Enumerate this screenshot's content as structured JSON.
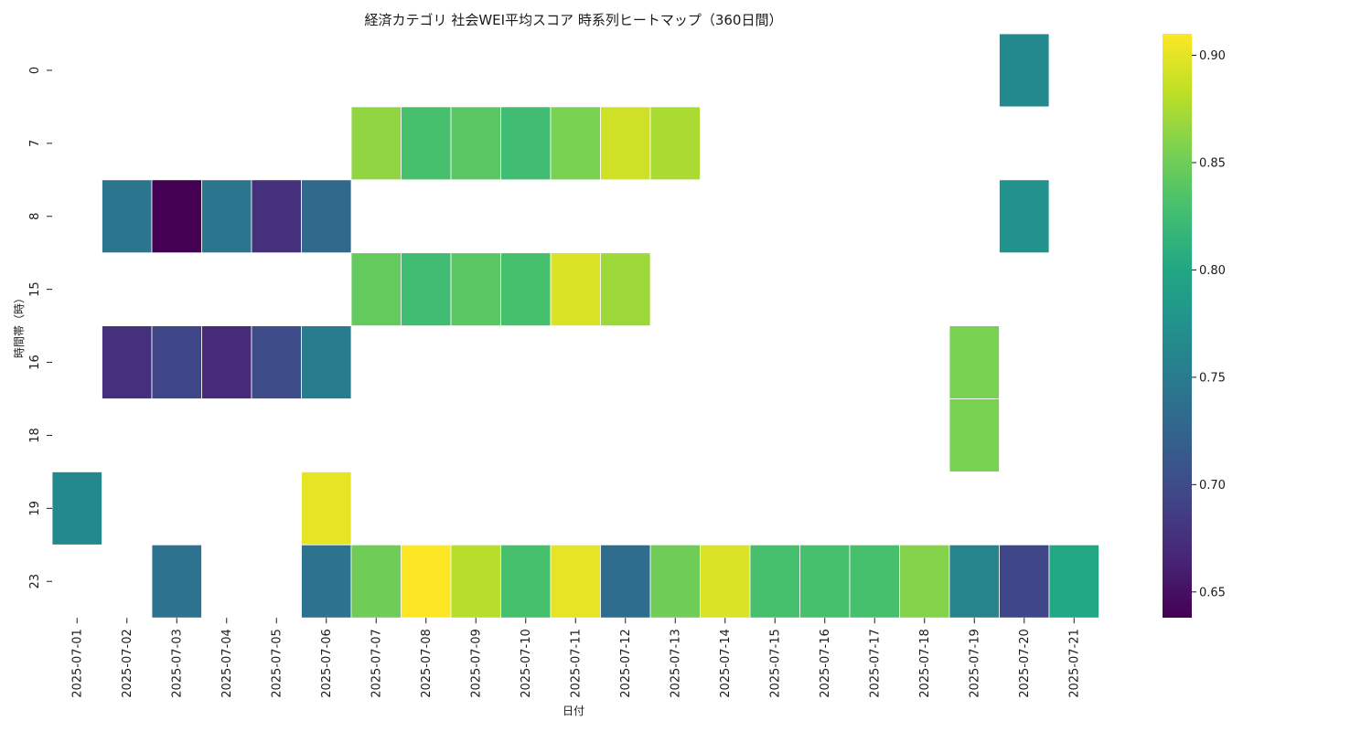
{
  "chart_data": {
    "type": "heatmap",
    "title": "経済カテゴリ 社会WEI平均スコア 時系列ヒートマップ（360日間）",
    "xlabel": "日付",
    "ylabel": "時間帯（時）",
    "x": [
      "2025-07-01",
      "2025-07-02",
      "2025-07-03",
      "2025-07-04",
      "2025-07-05",
      "2025-07-06",
      "2025-07-07",
      "2025-07-08",
      "2025-07-09",
      "2025-07-10",
      "2025-07-11",
      "2025-07-12",
      "2025-07-13",
      "2025-07-14",
      "2025-07-15",
      "2025-07-16",
      "2025-07-17",
      "2025-07-18",
      "2025-07-19",
      "2025-07-20",
      "2025-07-21"
    ],
    "y": [
      "0",
      "7",
      "8",
      "15",
      "16",
      "18",
      "19",
      "23"
    ],
    "values": [
      [
        null,
        null,
        null,
        null,
        null,
        null,
        null,
        null,
        null,
        null,
        null,
        null,
        null,
        null,
        null,
        null,
        null,
        null,
        null,
        0.765,
        null
      ],
      [
        null,
        null,
        null,
        null,
        null,
        null,
        0.865,
        0.83,
        0.84,
        0.825,
        0.855,
        0.89,
        0.875,
        null,
        null,
        null,
        null,
        null,
        null,
        null,
        null
      ],
      [
        null,
        0.745,
        0.638,
        0.745,
        0.675,
        0.73,
        null,
        null,
        null,
        null,
        null,
        null,
        null,
        null,
        null,
        null,
        null,
        null,
        null,
        0.775,
        null
      ],
      [
        null,
        null,
        null,
        null,
        null,
        null,
        0.845,
        0.825,
        0.84,
        0.83,
        0.895,
        0.87,
        null,
        null,
        null,
        null,
        null,
        null,
        null,
        null,
        null
      ],
      [
        null,
        0.675,
        0.695,
        0.67,
        0.7,
        0.75,
        null,
        null,
        null,
        null,
        null,
        null,
        null,
        null,
        null,
        null,
        null,
        null,
        0.855,
        null,
        null
      ],
      [
        null,
        null,
        null,
        null,
        null,
        null,
        null,
        null,
        null,
        null,
        null,
        null,
        null,
        null,
        null,
        null,
        null,
        null,
        0.855,
        null,
        null
      ],
      [
        0.765,
        null,
        null,
        null,
        null,
        0.9,
        null,
        null,
        null,
        null,
        null,
        null,
        null,
        null,
        null,
        null,
        null,
        null,
        null,
        null,
        null
      ],
      [
        null,
        null,
        0.74,
        null,
        null,
        0.74,
        0.85,
        0.91,
        0.88,
        0.83,
        0.9,
        0.735,
        0.85,
        0.895,
        0.83,
        0.83,
        0.83,
        0.86,
        0.76,
        0.695,
        0.8
      ]
    ],
    "colorscale": "viridis",
    "vmin": 0.638,
    "vmax": 0.91,
    "colorbar_ticks": [
      "0.65",
      "0.70",
      "0.75",
      "0.80",
      "0.85",
      "0.90"
    ],
    "grid": false,
    "cell_border_color": "#ffffff"
  }
}
